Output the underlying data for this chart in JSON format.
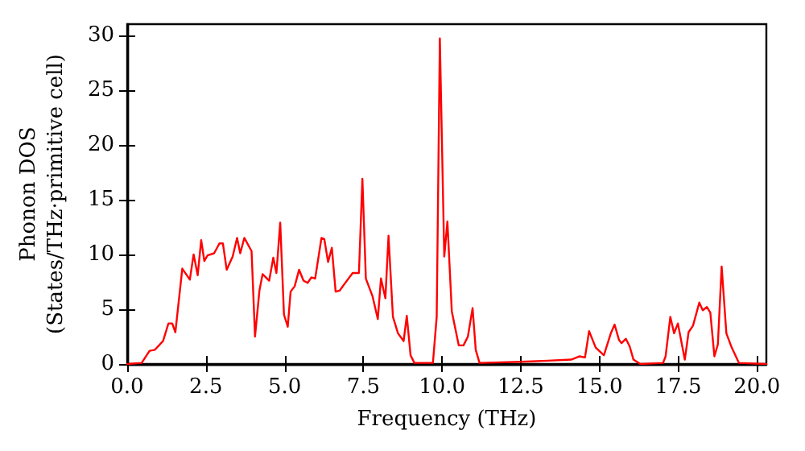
{
  "chart_data": {
    "type": "line",
    "xlabel": "Frequency (THz)",
    "ylabel": "Phonon DOS\n(States/THz·primitive cell)",
    "xlim": [
      0,
      20.3
    ],
    "ylim": [
      0,
      31
    ],
    "xticks": [
      {
        "value": 0,
        "label": "0.0"
      },
      {
        "value": 2.5,
        "label": "2.5"
      },
      {
        "value": 5,
        "label": "5.0"
      },
      {
        "value": 7.5,
        "label": "7.5"
      },
      {
        "value": 10,
        "label": "10.0"
      },
      {
        "value": 12.5,
        "label": "12.5"
      },
      {
        "value": 15,
        "label": "15.0"
      },
      {
        "value": 17.5,
        "label": "17.5"
      },
      {
        "value": 20,
        "label": "20.0"
      }
    ],
    "yticks": [
      0,
      5,
      10,
      15,
      20,
      25,
      30
    ],
    "grid": false,
    "marker": "none",
    "line_style": "solid",
    "series": [
      {
        "color": "#ff0000",
        "x": [
          0,
          0.46,
          0.71,
          0.88,
          1.14,
          1.31,
          1.43,
          1.53,
          1.75,
          1.99,
          2.11,
          2.24,
          2.35,
          2.45,
          2.55,
          2.76,
          2.93,
          3.04,
          3.16,
          3.35,
          3.49,
          3.59,
          3.72,
          3.95,
          4.06,
          4.2,
          4.3,
          4.51,
          4.64,
          4.74,
          4.86,
          4.98,
          5.1,
          5.19,
          5.32,
          5.46,
          5.6,
          5.73,
          5.85,
          5.97,
          6.17,
          6.26,
          6.38,
          6.5,
          6.62,
          6.75,
          6.9,
          7.16,
          7.36,
          7.47,
          7.58,
          7.79,
          7.96,
          8.06,
          8.2,
          8.3,
          8.44,
          8.6,
          8.78,
          8.88,
          9.0,
          9.12,
          9.71,
          9.83,
          9.93,
          10.07,
          10.17,
          10.31,
          10.53,
          10.68,
          10.82,
          10.97,
          11.07,
          11.19,
          12.5,
          13.35,
          14.1,
          14.37,
          14.54,
          14.67,
          14.88,
          15.14,
          15.36,
          15.48,
          15.62,
          15.7,
          15.84,
          15.96,
          16.08,
          16.3,
          17.02,
          17.1,
          17.25,
          17.37,
          17.49,
          17.71,
          17.83,
          17.97,
          18.17,
          18.28,
          18.41,
          18.52,
          18.65,
          18.76,
          18.88,
          19.03,
          19.2,
          19.43,
          20.3
        ],
        "values": [
          0,
          0.1,
          1.2,
          1.3,
          2.1,
          3.7,
          3.7,
          2.9,
          8.7,
          7.7,
          10.0,
          8.1,
          11.3,
          9.4,
          9.9,
          10.1,
          11.0,
          11.0,
          8.6,
          9.8,
          11.5,
          10.1,
          11.5,
          10.3,
          2.5,
          6.7,
          8.2,
          7.6,
          9.7,
          8.3,
          12.9,
          4.5,
          3.4,
          6.6,
          7.1,
          8.6,
          7.6,
          7.4,
          7.9,
          7.8,
          11.5,
          11.4,
          9.3,
          10.6,
          6.6,
          6.7,
          7.3,
          8.3,
          8.3,
          16.9,
          7.8,
          6.2,
          4.1,
          7.8,
          6.0,
          11.7,
          4.3,
          2.8,
          2.1,
          4.4,
          0.8,
          0.1,
          0.1,
          4.3,
          29.7,
          9.8,
          13.0,
          4.8,
          1.7,
          1.7,
          2.5,
          5.1,
          1.3,
          0.1,
          0.2,
          0.3,
          0.4,
          0.7,
          0.6,
          3.0,
          1.5,
          0.8,
          2.8,
          3.6,
          2.2,
          1.9,
          2.3,
          1.6,
          0.4,
          0,
          0.1,
          0.7,
          4.3,
          2.8,
          3.7,
          0.4,
          2.9,
          3.5,
          5.6,
          4.9,
          5.2,
          4.7,
          0.7,
          1.8,
          8.9,
          2.8,
          1.5,
          0.1,
          0
        ]
      }
    ]
  }
}
